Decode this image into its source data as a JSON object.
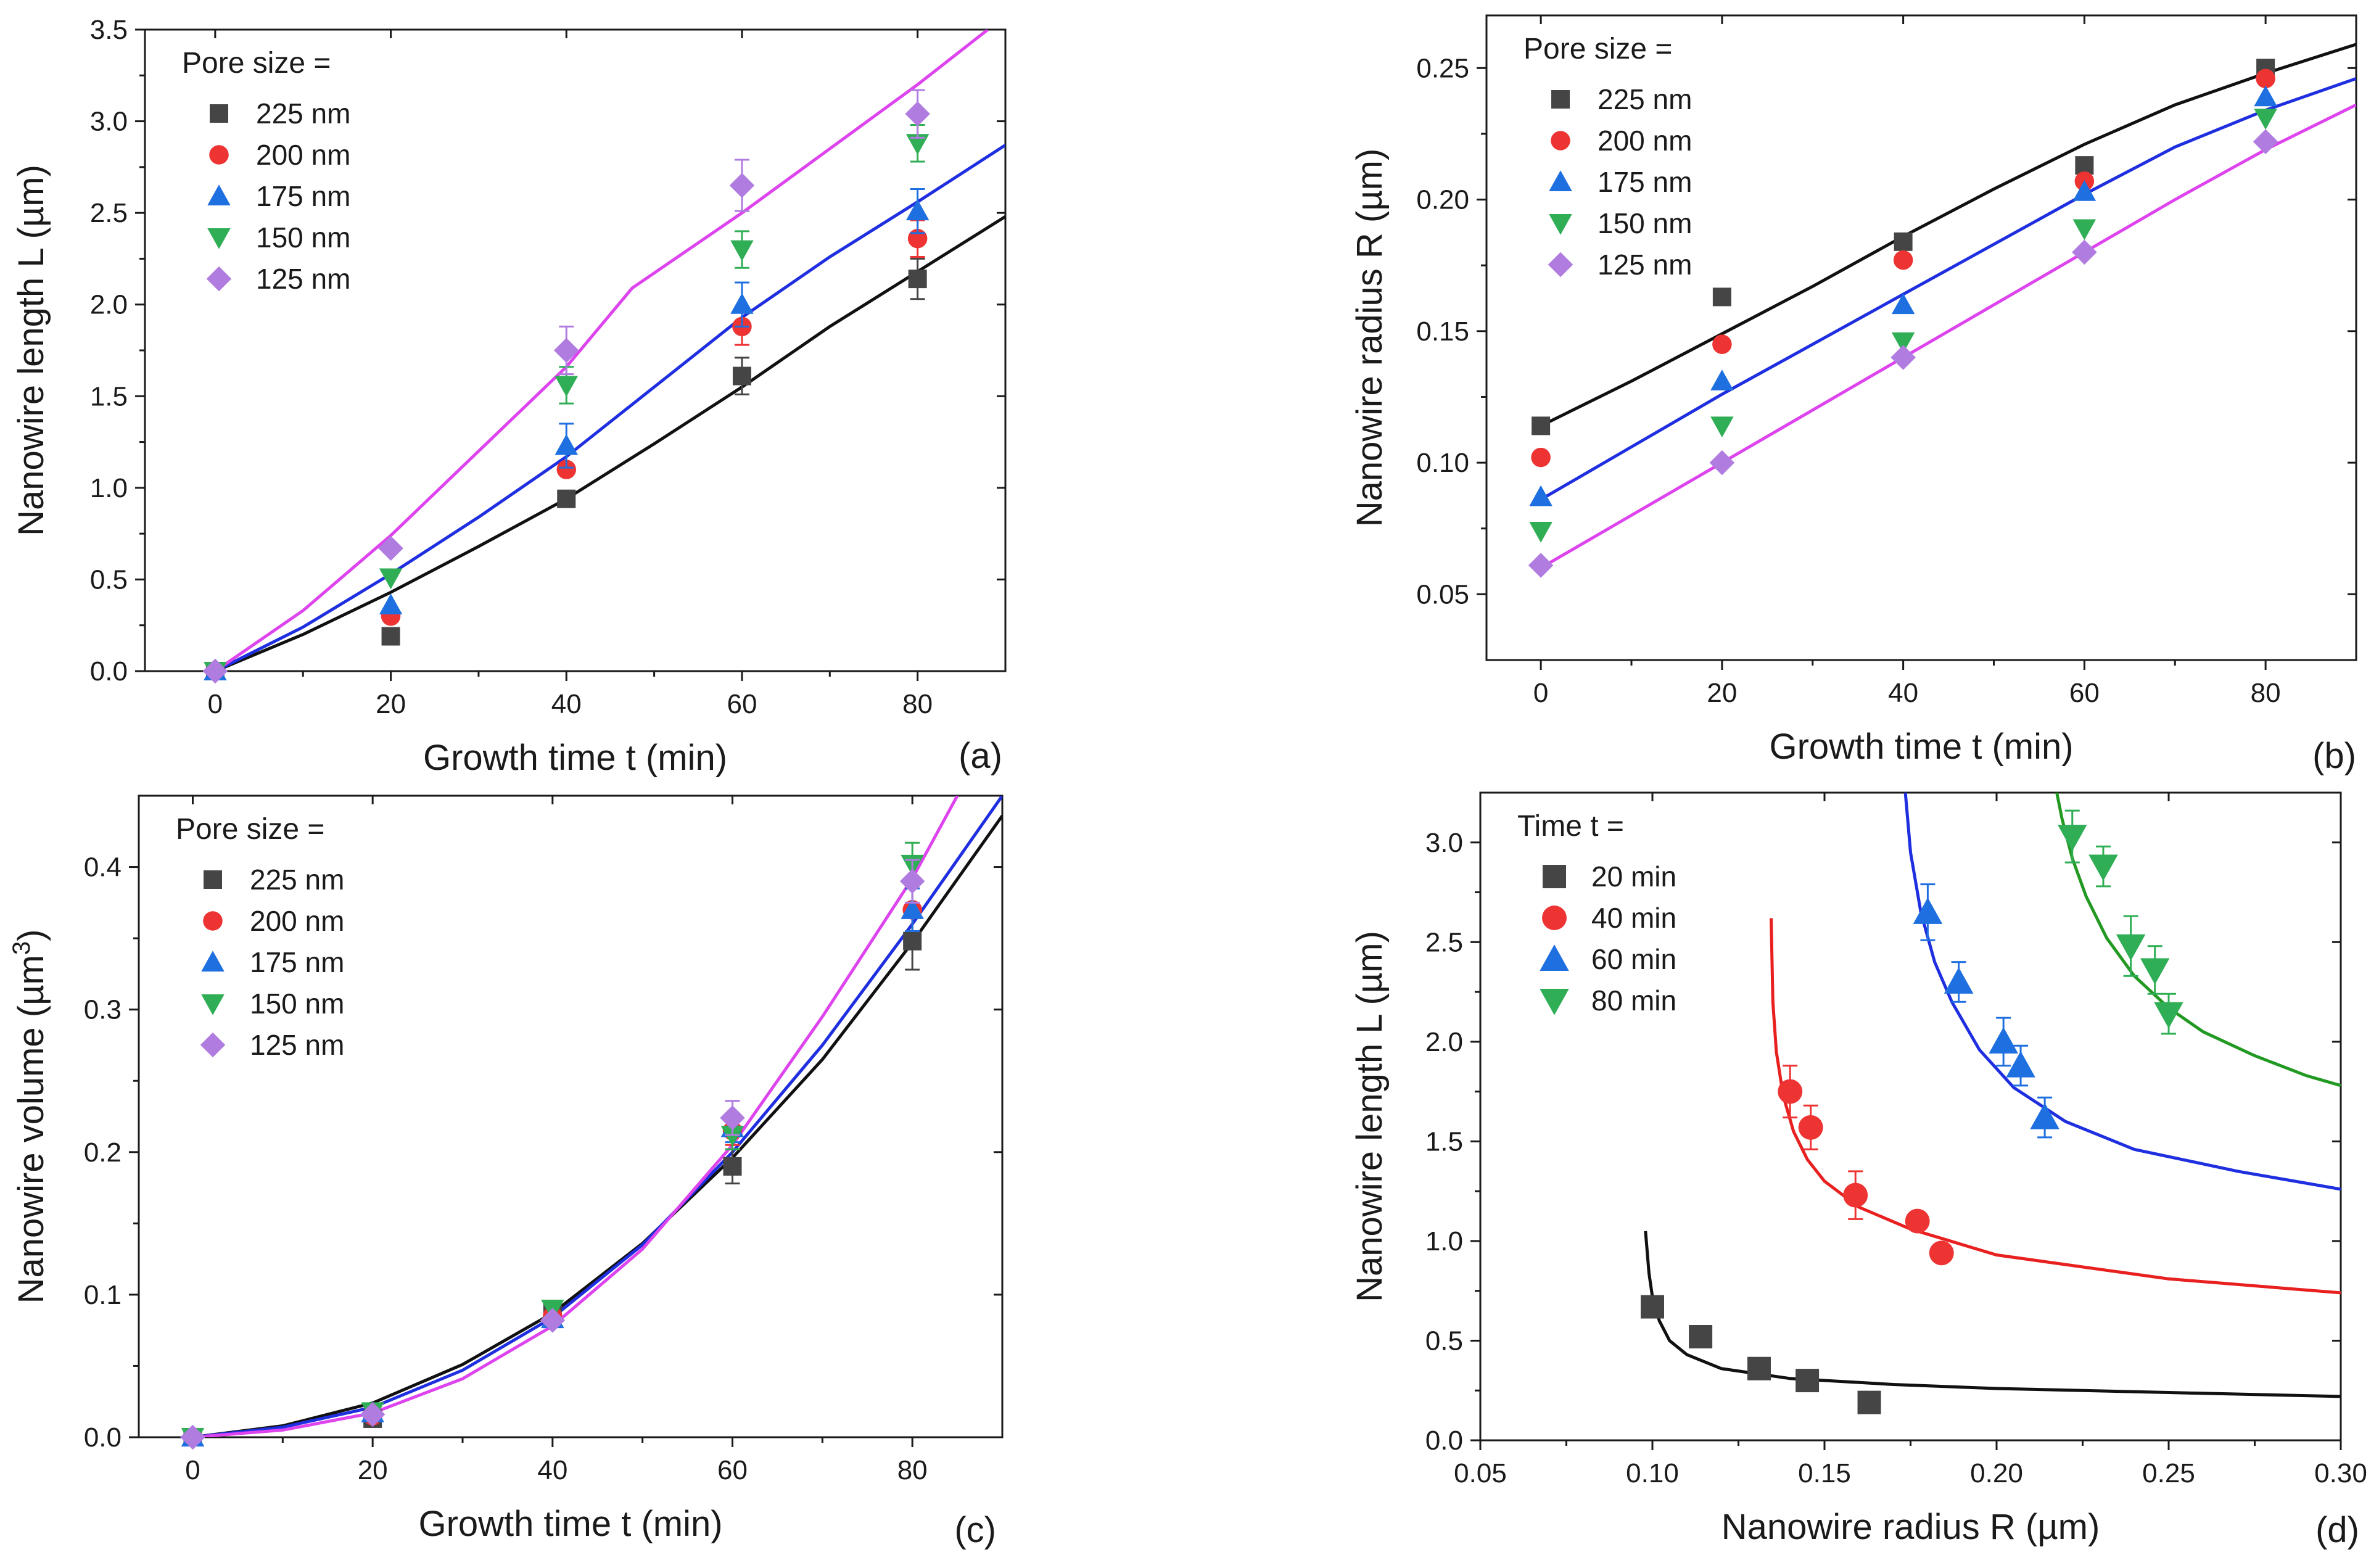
{
  "chart_data": [
    {
      "id": "a",
      "type": "scatter",
      "panel_label": "(a)",
      "xlabel": "Growth time t (min)",
      "ylabel": "Nanowire length L (µm)",
      "xlim": [
        -8,
        90
      ],
      "ylim": [
        0,
        3.5
      ],
      "xticks": [
        0,
        20,
        40,
        60,
        80
      ],
      "yticks": [
        0.0,
        0.5,
        1.0,
        1.5,
        2.0,
        2.5,
        3.0,
        3.5
      ],
      "ytick_labels": [
        "0.0",
        "0.5",
        "1.0",
        "1.5",
        "2.0",
        "2.5",
        "3.0",
        "3.5"
      ],
      "legend": {
        "title": "Pore size =",
        "position": "top-left"
      },
      "series": [
        {
          "name": "225 nm",
          "marker": "square",
          "color": "#454545",
          "x": [
            0,
            20,
            40,
            60,
            80
          ],
          "y": [
            0.0,
            0.19,
            0.94,
            1.61,
            2.14
          ],
          "err": [
            0,
            0,
            0,
            0.1,
            0.11
          ]
        },
        {
          "name": "200 nm",
          "marker": "circle",
          "color": "#ee3333",
          "x": [
            0,
            20,
            40,
            60,
            80
          ],
          "y": [
            0.0,
            0.3,
            1.1,
            1.88,
            2.36
          ],
          "err": [
            0,
            0,
            0,
            0.1,
            0.1
          ]
        },
        {
          "name": "175 nm",
          "marker": "triangle-up",
          "color": "#1e6fe0",
          "x": [
            0,
            20,
            40,
            60,
            80
          ],
          "y": [
            0.0,
            0.36,
            1.23,
            2.0,
            2.51
          ],
          "err": [
            0,
            0,
            0.12,
            0.12,
            0.12
          ]
        },
        {
          "name": "150 nm",
          "marker": "triangle-down",
          "color": "#2fae55",
          "x": [
            0,
            20,
            40,
            60,
            80
          ],
          "y": [
            0.0,
            0.51,
            1.56,
            2.3,
            2.88
          ],
          "err": [
            0,
            0,
            0.1,
            0.1,
            0.1
          ]
        },
        {
          "name": "125 nm",
          "marker": "diamond",
          "color": "#b07ce0",
          "x": [
            0,
            20,
            40,
            60,
            80
          ],
          "y": [
            0.0,
            0.67,
            1.75,
            2.65,
            3.04
          ],
          "err": [
            0,
            0,
            0.13,
            0.14,
            0.13
          ]
        }
      ],
      "fits": [
        {
          "color": "#111111",
          "x": [
            0,
            10,
            20,
            30,
            40,
            50,
            60,
            70,
            80,
            90
          ],
          "y": [
            0.0,
            0.2,
            0.43,
            0.68,
            0.94,
            1.24,
            1.55,
            1.88,
            2.18,
            2.48
          ]
        },
        {
          "color": "#1f2fe0",
          "x": [
            0,
            10,
            20,
            30,
            40,
            50,
            60,
            70,
            80,
            90
          ],
          "y": [
            0.0,
            0.24,
            0.53,
            0.84,
            1.17,
            1.55,
            1.93,
            2.26,
            2.56,
            2.87
          ]
        },
        {
          "color": "#dd44ee",
          "x": [
            0,
            10,
            20,
            30,
            40,
            47.5,
            60,
            70,
            80,
            88
          ],
          "y": [
            0.0,
            0.33,
            0.74,
            1.2,
            1.66,
            2.09,
            2.5,
            2.85,
            3.2,
            3.5
          ]
        }
      ]
    },
    {
      "id": "b",
      "type": "scatter",
      "panel_label": "(b)",
      "xlabel": "Growth time t (min)",
      "ylabel": "Nanowire radius R (µm)",
      "xlim": [
        -6,
        90
      ],
      "ylim": [
        0.025,
        0.27
      ],
      "xticks": [
        0,
        20,
        40,
        60,
        80
      ],
      "yticks": [
        0.05,
        0.1,
        0.15,
        0.2,
        0.25
      ],
      "ytick_labels": [
        "0.05",
        "0.10",
        "0.15",
        "0.20",
        "0.25"
      ],
      "legend": {
        "title": "Pore size =",
        "position": "top-left"
      },
      "series": [
        {
          "name": "225 nm",
          "marker": "square",
          "color": "#454545",
          "x": [
            0,
            20,
            40,
            60,
            80
          ],
          "y": [
            0.114,
            0.163,
            0.184,
            0.213,
            0.25
          ]
        },
        {
          "name": "200 nm",
          "marker": "circle",
          "color": "#ee3333",
          "x": [
            0,
            20,
            40,
            60,
            80
          ],
          "y": [
            0.102,
            0.145,
            0.177,
            0.207,
            0.246
          ]
        },
        {
          "name": "175 nm",
          "marker": "triangle-up",
          "color": "#1e6fe0",
          "x": [
            0,
            20,
            40,
            60,
            80
          ],
          "y": [
            0.087,
            0.131,
            0.16,
            0.203,
            0.239
          ]
        },
        {
          "name": "150 nm",
          "marker": "triangle-down",
          "color": "#2fae55",
          "x": [
            0,
            20,
            40,
            60,
            80
          ],
          "y": [
            0.074,
            0.114,
            0.146,
            0.189,
            0.231
          ]
        },
        {
          "name": "125 nm",
          "marker": "diamond",
          "color": "#b07ce0",
          "x": [
            0,
            20,
            40,
            60,
            80
          ],
          "y": [
            0.061,
            0.1,
            0.14,
            0.18,
            0.222
          ]
        }
      ],
      "fits": [
        {
          "color": "#111111",
          "x": [
            0,
            10,
            20,
            30,
            40,
            50,
            60,
            70,
            80,
            90
          ],
          "y": [
            0.114,
            0.131,
            0.149,
            0.167,
            0.186,
            0.204,
            0.221,
            0.236,
            0.248,
            0.259
          ]
        },
        {
          "color": "#1f2fe0",
          "x": [
            0,
            10,
            20,
            30,
            40,
            50,
            60,
            70,
            80,
            90
          ],
          "y": [
            0.086,
            0.106,
            0.126,
            0.145,
            0.164,
            0.183,
            0.202,
            0.22,
            0.234,
            0.246
          ]
        },
        {
          "color": "#dd44ee",
          "x": [
            0,
            10,
            20,
            30,
            40,
            50,
            60,
            70,
            80,
            90
          ],
          "y": [
            0.06,
            0.08,
            0.1,
            0.12,
            0.14,
            0.16,
            0.18,
            0.2,
            0.219,
            0.236
          ]
        }
      ]
    },
    {
      "id": "c",
      "type": "scatter",
      "panel_label": "(c)",
      "xlabel": "Growth time t (min)",
      "ylabel": "Nanowire volume (µm",
      "ylabel_sup": "3",
      "ylabel_end": ")",
      "xlim": [
        -6,
        90
      ],
      "ylim": [
        0,
        0.45
      ],
      "xticks": [
        0,
        20,
        40,
        60,
        80
      ],
      "yticks": [
        0.0,
        0.1,
        0.2,
        0.3,
        0.4
      ],
      "ytick_labels": [
        "0.0",
        "0.1",
        "0.2",
        "0.3",
        "0.4"
      ],
      "legend": {
        "title": "Pore size =",
        "position": "top-left"
      },
      "series": [
        {
          "name": "225 nm",
          "marker": "square",
          "color": "#454545",
          "x": [
            0,
            20,
            40,
            60,
            80
          ],
          "y": [
            0.0,
            0.013,
            0.088,
            0.19,
            0.348
          ],
          "err": [
            0,
            0,
            0,
            0.012,
            0.02
          ]
        },
        {
          "name": "200 nm",
          "marker": "circle",
          "color": "#ee3333",
          "x": [
            0,
            20,
            40,
            60,
            80
          ],
          "y": [
            0.0,
            0.015,
            0.085,
            0.215,
            0.37
          ],
          "err": [
            0,
            0,
            0,
            0.01,
            0.015
          ]
        },
        {
          "name": "175 nm",
          "marker": "triangle-up",
          "color": "#1e6fe0",
          "x": [
            0,
            20,
            40,
            60,
            80
          ],
          "y": [
            0.0,
            0.017,
            0.083,
            0.217,
            0.37
          ],
          "err": [
            0,
            0,
            0,
            0.01,
            0.015
          ]
        },
        {
          "name": "150 nm",
          "marker": "triangle-down",
          "color": "#2fae55",
          "x": [
            0,
            20,
            40,
            60,
            80
          ],
          "y": [
            0.0,
            0.018,
            0.09,
            0.212,
            0.402
          ],
          "err": [
            0,
            0,
            0,
            0.01,
            0.015
          ]
        },
        {
          "name": "125 nm",
          "marker": "diamond",
          "color": "#b07ce0",
          "x": [
            0,
            20,
            40,
            60,
            80
          ],
          "y": [
            0.0,
            0.016,
            0.082,
            0.224,
            0.39
          ],
          "err": [
            0,
            0,
            0,
            0.012,
            0.015
          ]
        }
      ],
      "fits": [
        {
          "color": "#111111",
          "x": [
            0,
            10,
            20,
            30,
            40,
            50,
            60,
            70,
            80,
            90
          ],
          "y": [
            0.0,
            0.008,
            0.024,
            0.051,
            0.087,
            0.136,
            0.196,
            0.265,
            0.347,
            0.436
          ]
        },
        {
          "color": "#1f2fe0",
          "x": [
            0,
            10,
            20,
            30,
            40,
            50,
            60,
            70,
            80,
            90
          ],
          "y": [
            0.0,
            0.007,
            0.021,
            0.047,
            0.084,
            0.135,
            0.2,
            0.275,
            0.36,
            0.45
          ]
        },
        {
          "color": "#dd44ee",
          "x": [
            0,
            10,
            20,
            30,
            40,
            50,
            60,
            70,
            80,
            85
          ],
          "y": [
            0.0,
            0.005,
            0.017,
            0.041,
            0.078,
            0.132,
            0.205,
            0.295,
            0.392,
            0.45
          ]
        }
      ]
    },
    {
      "id": "d",
      "type": "scatter",
      "panel_label": "(d)",
      "xlabel": "Nanowire radius R (µm)",
      "ylabel": "Nanowire length L (µm)",
      "xlim": [
        0.05,
        0.3
      ],
      "ylim": [
        0,
        3.25
      ],
      "xticks": [
        0.05,
        0.1,
        0.15,
        0.2,
        0.25,
        0.3
      ],
      "xtick_labels": [
        "0.05",
        "0.10",
        "0.15",
        "0.20",
        "0.25",
        "0.30"
      ],
      "yticks": [
        0.0,
        0.5,
        1.0,
        1.5,
        2.0,
        2.5,
        3.0
      ],
      "ytick_labels": [
        "0.0",
        "0.5",
        "1.0",
        "1.5",
        "2.0",
        "2.5",
        "3.0"
      ],
      "legend": {
        "title": "Time t =",
        "position": "top-left"
      },
      "series": [
        {
          "name": "20 min",
          "marker": "square",
          "color": "#454545",
          "x": [
            0.1,
            0.114,
            0.131,
            0.145,
            0.163
          ],
          "y": [
            0.67,
            0.52,
            0.36,
            0.3,
            0.19
          ],
          "err": [
            0,
            0,
            0,
            0,
            0
          ]
        },
        {
          "name": "40 min",
          "marker": "circle",
          "color": "#ee3333",
          "x": [
            0.14,
            0.146,
            0.159,
            0.177,
            0.184
          ],
          "y": [
            1.75,
            1.57,
            1.23,
            1.1,
            0.94
          ],
          "err": [
            0.13,
            0.11,
            0.12,
            0,
            0
          ]
        },
        {
          "name": "60 min",
          "marker": "triangle-up",
          "color": "#1e6fe0",
          "x": [
            0.18,
            0.189,
            0.202,
            0.207,
            0.214
          ],
          "y": [
            2.65,
            2.3,
            2.0,
            1.88,
            1.62
          ],
          "err": [
            0.14,
            0.1,
            0.12,
            0.1,
            0.1
          ]
        },
        {
          "name": "80 min",
          "marker": "triangle-down",
          "color": "#2fae55",
          "x": [
            0.222,
            0.231,
            0.239,
            0.246,
            0.25
          ],
          "y": [
            3.03,
            2.88,
            2.48,
            2.36,
            2.14
          ],
          "err": [
            0.13,
            0.1,
            0.15,
            0.12,
            0.1
          ]
        }
      ],
      "fits": [
        {
          "color": "#111111",
          "x": [
            0.098,
            0.099,
            0.1,
            0.102,
            0.105,
            0.11,
            0.12,
            0.14,
            0.17,
            0.2,
            0.25,
            0.3
          ],
          "y": [
            1.05,
            0.84,
            0.72,
            0.6,
            0.5,
            0.43,
            0.36,
            0.31,
            0.28,
            0.26,
            0.24,
            0.22
          ]
        },
        {
          "color": "#e82020",
          "x": [
            0.1345,
            0.135,
            0.136,
            0.138,
            0.141,
            0.145,
            0.15,
            0.16,
            0.175,
            0.2,
            0.25,
            0.3
          ],
          "y": [
            2.62,
            2.2,
            1.95,
            1.73,
            1.55,
            1.41,
            1.3,
            1.17,
            1.06,
            0.93,
            0.81,
            0.74
          ]
        },
        {
          "color": "#1f2fe0",
          "x": [
            0.1735,
            0.175,
            0.178,
            0.182,
            0.187,
            0.195,
            0.205,
            0.22,
            0.24,
            0.27,
            0.3
          ],
          "y": [
            3.25,
            2.95,
            2.65,
            2.4,
            2.2,
            1.96,
            1.77,
            1.6,
            1.46,
            1.35,
            1.26
          ]
        },
        {
          "color": "#229922",
          "x": [
            0.2175,
            0.219,
            0.222,
            0.226,
            0.232,
            0.24,
            0.25,
            0.26,
            0.275,
            0.29,
            0.3
          ],
          "y": [
            3.25,
            3.12,
            2.92,
            2.73,
            2.52,
            2.33,
            2.17,
            2.05,
            1.93,
            1.83,
            1.78
          ]
        }
      ]
    }
  ]
}
